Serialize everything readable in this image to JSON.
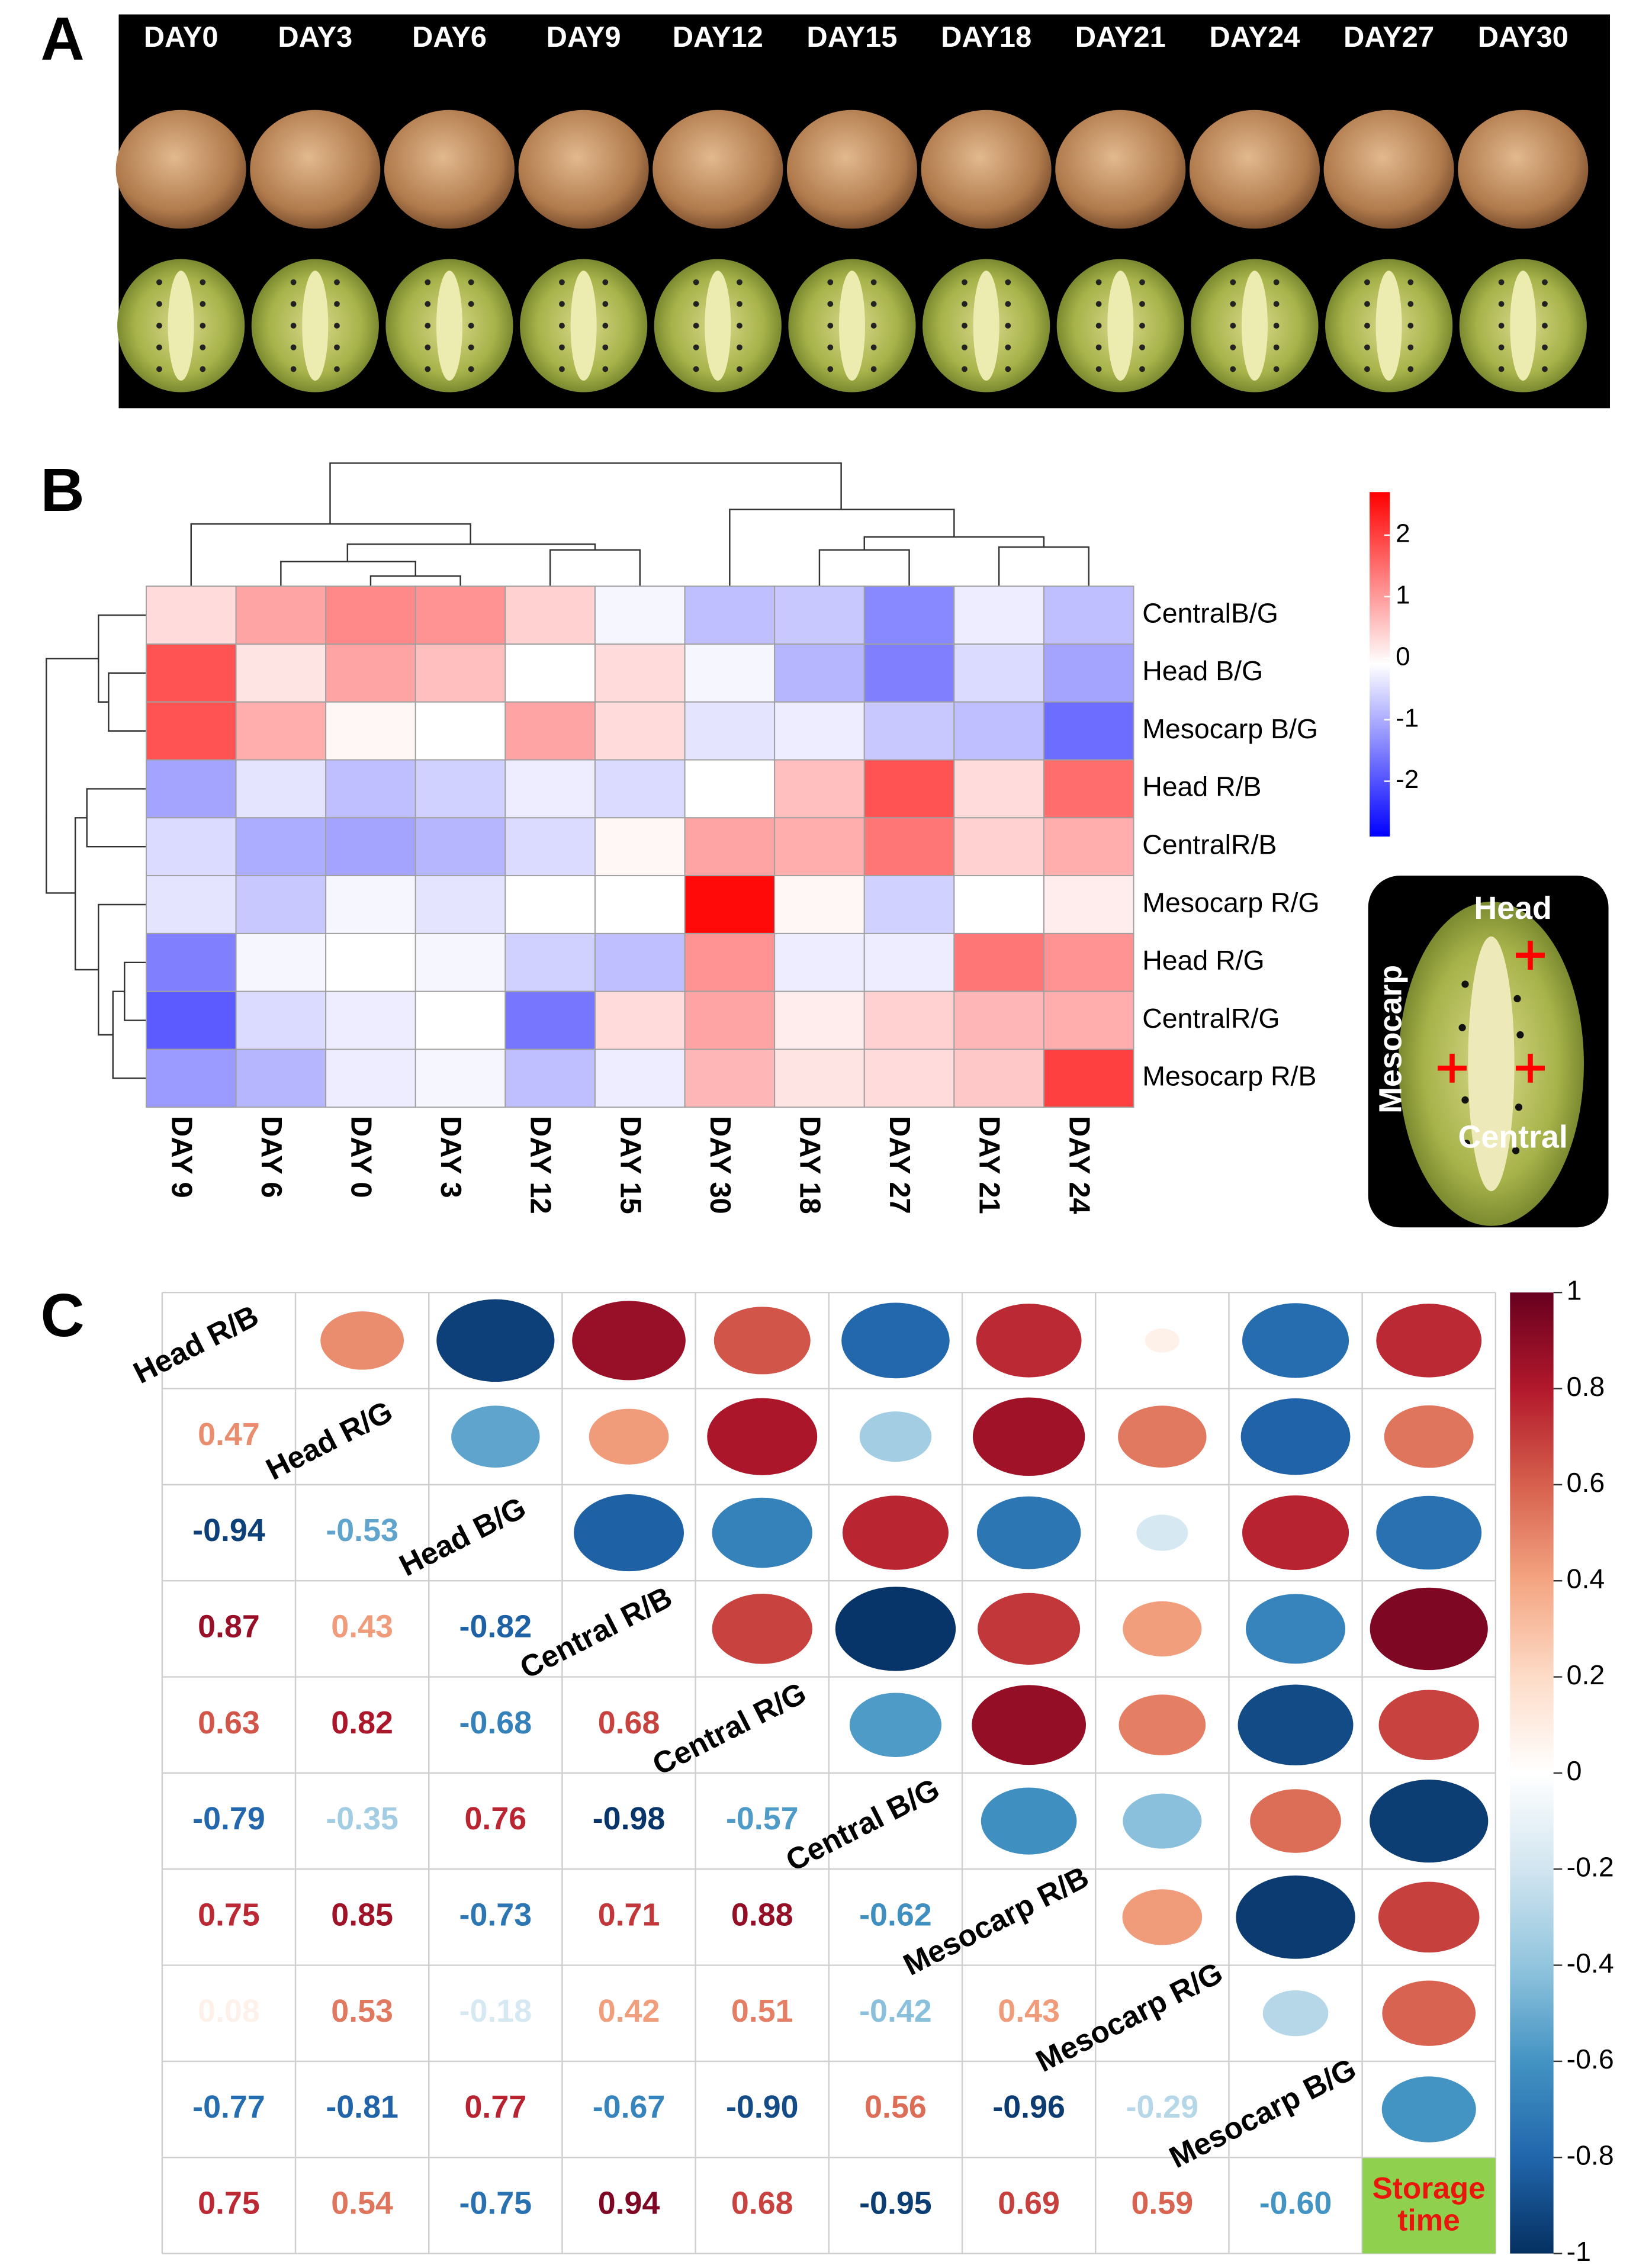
{
  "panel_labels": [
    "A",
    "B",
    "C"
  ],
  "photos": {
    "days": [
      "DAY0",
      "DAY3",
      "DAY6",
      "DAY9",
      "DAY12",
      "DAY15",
      "DAY18",
      "DAY21",
      "DAY24",
      "DAY27",
      "DAY30"
    ]
  },
  "inset": {
    "head": "Head",
    "central": "Central",
    "mesocarp": "Mesocarp"
  },
  "chart_data": [
    {
      "type": "heatmap",
      "rows": [
        "CentralB/G",
        "Head B/G",
        "Mesocarp B/G",
        "Head R/B",
        "CentralR/B",
        "Mesocarp R/G",
        "Head R/G",
        "CentralR/G",
        "Mesocarp R/B"
      ],
      "columns": [
        "DAY 9",
        "DAY 6",
        "DAY 0",
        "DAY 3",
        "DAY 12",
        "DAY 15",
        "DAY 30",
        "DAY 18",
        "DAY 27",
        "DAY 21",
        "DAY 24"
      ],
      "values": [
        [
          0.3,
          0.9,
          1.2,
          1.1,
          0.4,
          -0.2,
          -0.8,
          -0.7,
          -1.4,
          -0.3,
          -0.8
        ],
        [
          1.8,
          0.2,
          0.9,
          0.6,
          -0.1,
          0.3,
          -0.2,
          -0.9,
          -1.5,
          -0.5,
          -1.1
        ],
        [
          1.8,
          0.8,
          0.0,
          -0.1,
          0.9,
          0.3,
          -0.4,
          -0.3,
          -0.7,
          -0.8,
          -1.7
        ],
        [
          -1.1,
          -0.4,
          -0.8,
          -0.6,
          -0.3,
          -0.5,
          -0.1,
          0.6,
          1.8,
          0.3,
          1.5
        ],
        [
          -0.5,
          -1.0,
          -1.1,
          -0.9,
          -0.5,
          0.0,
          0.9,
          0.8,
          1.4,
          0.4,
          0.8
        ],
        [
          -0.4,
          -0.7,
          -0.2,
          -0.4,
          -0.1,
          -0.1,
          2.6,
          0.0,
          -0.6,
          -0.1,
          0.1
        ],
        [
          -1.5,
          -0.2,
          -0.1,
          -0.2,
          -0.6,
          -0.8,
          1.1,
          -0.3,
          -0.3,
          1.4,
          1.1
        ],
        [
          -1.9,
          -0.5,
          -0.3,
          -0.1,
          -1.6,
          0.3,
          0.9,
          0.1,
          0.4,
          0.7,
          0.8
        ],
        [
          -1.2,
          -0.9,
          -0.3,
          -0.2,
          -0.8,
          -0.3,
          0.7,
          0.2,
          0.3,
          0.5,
          2.0
        ]
      ],
      "zlim": [
        -2.9,
        2.7
      ],
      "zticks": [
        2,
        1,
        0,
        -1,
        -2
      ],
      "colors": [
        "#0000ff",
        "#ffffff",
        "#ff0000"
      ]
    },
    {
      "type": "correlogram",
      "variables": [
        "Head R/B",
        "Head R/G",
        "Head B/G",
        "Central R/B",
        "Central R/G",
        "Central B/G",
        "Mesocarp R/B",
        "Mesocarp R/G",
        "Mesocarp B/G",
        "Storage time"
      ],
      "values": [
        [
          0.47
        ],
        [
          -0.94,
          -0.53
        ],
        [
          0.87,
          0.43,
          -0.82
        ],
        [
          0.63,
          0.82,
          -0.68,
          0.68
        ],
        [
          -0.79,
          -0.35,
          0.76,
          -0.98,
          -0.57
        ],
        [
          0.75,
          0.85,
          -0.73,
          0.71,
          0.88,
          -0.62
        ],
        [
          0.08,
          0.53,
          -0.18,
          0.42,
          0.51,
          -0.42,
          0.43
        ],
        [
          -0.77,
          -0.81,
          0.77,
          -0.67,
          -0.9,
          0.56,
          -0.96,
          -0.29
        ],
        [
          0.75,
          0.54,
          -0.75,
          0.94,
          0.68,
          -0.95,
          0.69,
          0.59,
          -0.6
        ]
      ],
      "value_labels": [
        [
          "0.47"
        ],
        [
          "-0.94",
          "-0.53"
        ],
        [
          "0.87",
          "0.43",
          "-0.82"
        ],
        [
          "0.63",
          "0.82",
          "-0.68",
          "0.68"
        ],
        [
          "-0.79",
          "-0.35",
          "0.76",
          "-0.98",
          "-0.57"
        ],
        [
          "0.75",
          "0.85",
          "-0.73",
          "0.71",
          "0.88",
          "-0.62"
        ],
        [
          "0.08",
          "0.53",
          "-0.18",
          "0.42",
          "0.51",
          "-0.42",
          "0.43"
        ],
        [
          "-0.77",
          "-0.81",
          "0.77",
          "-0.67",
          "-0.90",
          "0.56",
          "-0.96",
          "-0.29"
        ],
        [
          "0.75",
          "0.54",
          "-0.75",
          "0.94",
          "0.68",
          "-0.95",
          "0.69",
          "0.59",
          "-0.60"
        ]
      ],
      "zlim": [
        -1,
        1
      ],
      "zticks": [
        1,
        0.8,
        0.6,
        0.4,
        0.2,
        0,
        -0.2,
        -0.4,
        -0.6,
        -0.8,
        -1
      ],
      "colors": [
        "#67001f",
        "#b2182b",
        "#d6604d",
        "#f4a582",
        "#fddbc7",
        "#ffffff",
        "#d1e5f0",
        "#92c5de",
        "#4393c3",
        "#2166ac",
        "#053061"
      ]
    }
  ]
}
